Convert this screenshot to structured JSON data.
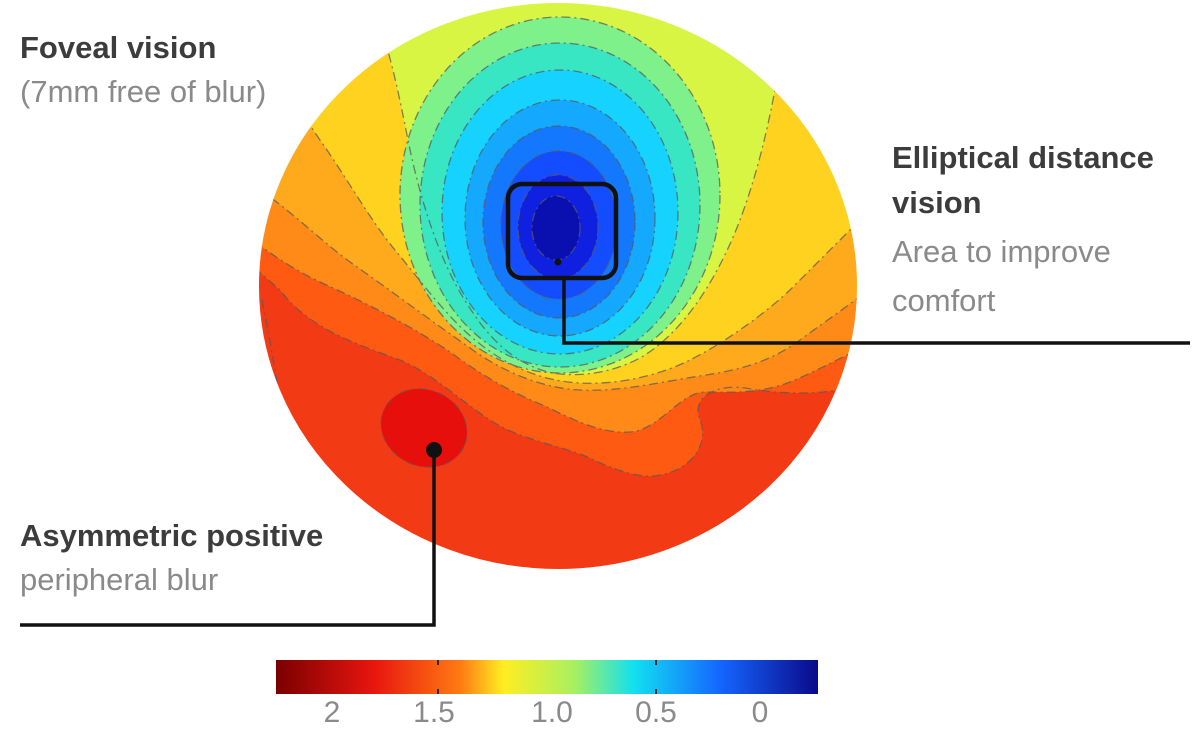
{
  "labels": {
    "foveal": {
      "title": "Foveal vision",
      "subtitle": "(7mm free of blur)"
    },
    "elliptical": {
      "title_line1": "Elliptical distance",
      "title_line2": "vision",
      "subtitle_line1": "Area to improve",
      "subtitle_line2": "comfort"
    },
    "asymmetric": {
      "title": "Asymmetric positive",
      "subtitle": "peripheral blur"
    }
  },
  "colorbar": {
    "ticks": [
      "2",
      "1.5",
      "1.0",
      "0.5",
      "0"
    ],
    "colors": {
      "dark_red": "#7a0000",
      "red": "#e8150f",
      "orange": "#ff7a12",
      "yellow": "#ffee22",
      "green": "#a8f060",
      "cyan": "#12e0f0",
      "blue": "#1565ff",
      "dark_blue": "#0a0a8a"
    }
  },
  "map": {
    "colors": {
      "outer_red": "#f23a14",
      "red_orange": "#ff5a12",
      "orange": "#ff8a18",
      "orange_yellow": "#ffaa1c",
      "yellow": "#ffd21f",
      "yellow_green": "#d8f544",
      "green": "#7ef18a",
      "aqua": "#38e6c4",
      "cyan": "#16d2ff",
      "sky": "#14a8ff",
      "blue": "#1478ff",
      "deep_blue": "#144cff",
      "navy": "#1020e0",
      "center": "#0a10b0",
      "hot_spot": "#e60f0c"
    }
  }
}
